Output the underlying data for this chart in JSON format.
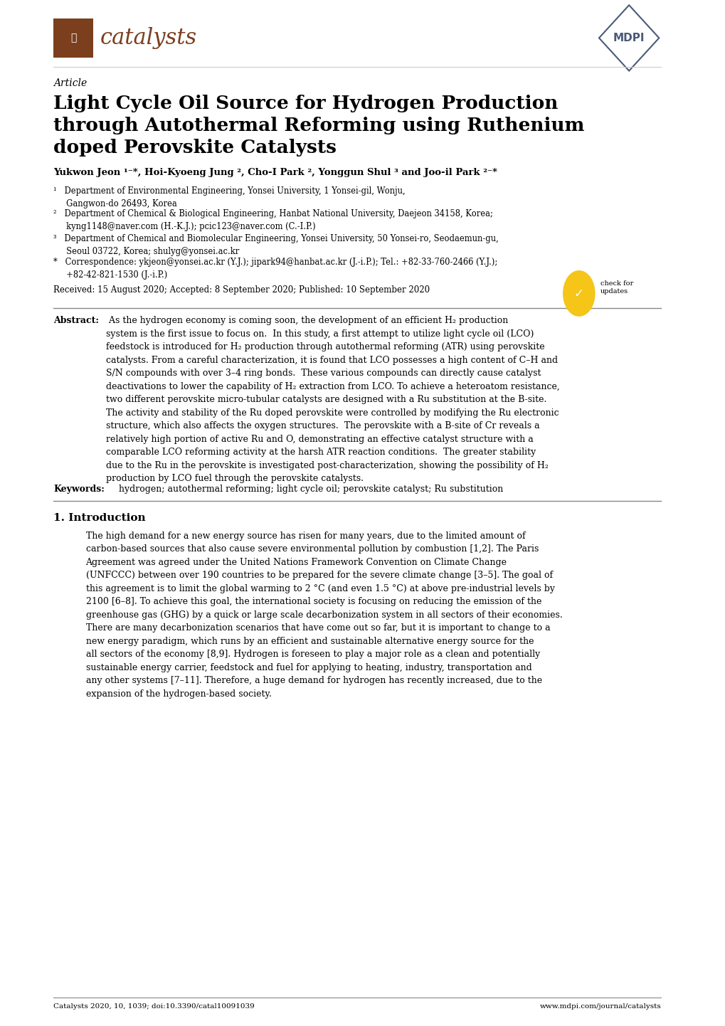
{
  "bg_color": "#ffffff",
  "text_color": "#000000",
  "journal_name": "catalysts",
  "journal_color": "#7B3F1E",
  "mdpi_color": "#4A5A7A",
  "article_label": "Article",
  "title": "Light Cycle Oil Source for Hydrogen Production\nthrough Autothermal Reforming using Ruthenium\ndoped Perovskite Catalysts",
  "authors": "Yukwon Jeon ¹⁻*, Hoi-Kyoeng Jung ², Cho-I Park ², Yonggun Shul ³ and Joo-il Park ²⁻*",
  "affil1": "¹   Department of Environmental Engineering, Yonsei University, 1 Yonsei-gil, Wonju,\n     Gangwon-do 26493, Korea",
  "affil2": "²   Department of Chemical & Biological Engineering, Hanbat National University, Daejeon 34158, Korea;\n     kyng1148@naver.com (H.-K.J.); pcic123@naver.com (C.-I.P.)",
  "affil3": "³   Department of Chemical and Biomolecular Engineering, Yonsei University, 50 Yonsei-ro, Seodaemun-gu,\n     Seoul 03722, Korea; shulyg@yonsei.ac.kr",
  "affil4": "*   Correspondence: ykjeon@yonsei.ac.kr (Y.J.); jipark94@hanbat.ac.kr (J.-i.P.); Tel.: +82-33-760-2466 (Y.J.);\n     +82-42-821-1530 (J.-i.P.)",
  "dates": "Received: 15 August 2020; Accepted: 8 September 2020; Published: 10 September 2020",
  "abstract_label": "Abstract:",
  "abstract_text": " As the hydrogen economy is coming soon, the development of an efficient H₂ production\nsystem is the first issue to focus on.  In this study, a first attempt to utilize light cycle oil (LCO)\nfeedstock is introduced for H₂ production through autothermal reforming (ATR) using perovskite\ncatalysts. From a careful characterization, it is found that LCO possesses a high content of C–H and\nS/N compounds with over 3–4 ring bonds.  These various compounds can directly cause catalyst\ndeactivations to lower the capability of H₂ extraction from LCO. To achieve a heteroatom resistance,\ntwo different perovskite micro-tubular catalysts are designed with a Ru substitution at the B-site.\nThe activity and stability of the Ru doped perovskite were controlled by modifying the Ru electronic\nstructure, which also affects the oxygen structures.  The perovskite with a B-site of Cr reveals a\nrelatively high portion of active Ru and O, demonstrating an effective catalyst structure with a\ncomparable LCO reforming activity at the harsh ATR reaction conditions.  The greater stability\ndue to the Ru in the perovskite is investigated post-characterization, showing the possibility of H₂\nproduction by LCO fuel through the perovskite catalysts.",
  "keywords_label": "Keywords:",
  "keywords_text": " hydrogen; autothermal reforming; light cycle oil; perovskite catalyst; Ru substitution",
  "section1_title": "1. Introduction",
  "intro_text": "The high demand for a new energy source has risen for many years, due to the limited amount of\ncarbon-based sources that also cause severe environmental pollution by combustion [1,2]. The Paris\nAgreement was agreed under the United Nations Framework Convention on Climate Change\n(UNFCCC) between over 190 countries to be prepared for the severe climate change [3–5]. The goal of\nthis agreement is to limit the global warming to 2 °C (and even 1.5 °C) at above pre-industrial levels by\n2100 [6–8]. To achieve this goal, the international society is focusing on reducing the emission of the\ngreenhouse gas (GHG) by a quick or large scale decarbonization system in all sectors of their economies.\nThere are many decarbonization scenarios that have come out so far, but it is important to change to a\nnew energy paradigm, which runs by an efficient and sustainable alternative energy source for the\nall sectors of the economy [8,9]. Hydrogen is foreseen to play a major role as a clean and potentially\nsustainable energy carrier, feedstock and fuel for applying to heating, industry, transportation and\nany other systems [7–11]. Therefore, a huge demand for hydrogen has recently increased, due to the\nexpansion of the hydrogen-based society.",
  "footer_left": "Catalysts 2020, 10, 1039; doi:10.3390/catal10091039",
  "footer_right": "www.mdpi.com/journal/catalysts"
}
